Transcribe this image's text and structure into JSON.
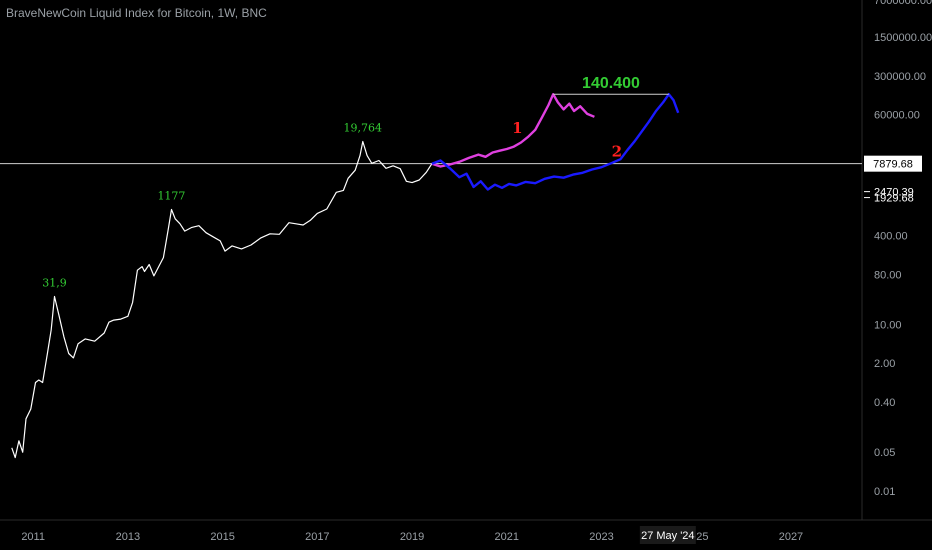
{
  "header": {
    "title": "BraveNewCoin Liquid Index for Bitcoin, 1W, BNC"
  },
  "colors": {
    "background": "#000000",
    "price_line": "#ffffff",
    "scenario_1": "#e040e0",
    "scenario_2": "#1a1aff",
    "peak_label": "#33cc33",
    "scenario_label": "#ff2020",
    "axis_text": "#9aa0a6"
  },
  "chart_data": {
    "type": "line",
    "y_scale": "log",
    "x_range": [
      2010.3,
      2028.5
    ],
    "y_range": [
      0.003,
      7000000
    ],
    "x_ticks": [
      "2011",
      "2013",
      "2015",
      "2017",
      "2019",
      "2021",
      "2023",
      "2025",
      "2027"
    ],
    "x_tick_values": [
      2011,
      2013,
      2015,
      2017,
      2019,
      2021,
      2023,
      2025,
      2027
    ],
    "y_ticks": [
      "7000000.00",
      "1500000.00",
      "300000.00",
      "60000.00",
      "400.00",
      "80.00",
      "10.00",
      "2.00",
      "0.40",
      "0.05",
      "0.01"
    ],
    "y_tick_values": [
      7000000,
      1500000,
      300000,
      60000,
      400,
      80,
      10,
      2,
      0.4,
      0.05,
      0.01
    ],
    "price_labels": [
      {
        "text": "7879.68",
        "value": 7879.68,
        "style": "boxed"
      },
      {
        "text": "2470.39",
        "value": 2470.39,
        "style": "marker"
      },
      {
        "text": "1929.68",
        "value": 1929.68,
        "style": "marker"
      }
    ],
    "date_label": {
      "text": "27 May '24",
      "x": 2024.4
    },
    "horizontal_line": {
      "value": 7879.68
    },
    "series": [
      {
        "values": [
          [
            2010.55,
            0.06
          ],
          [
            2010.62,
            0.04
          ],
          [
            2010.7,
            0.08
          ],
          [
            2010.78,
            0.05
          ],
          [
            2010.85,
            0.2
          ],
          [
            2010.95,
            0.3
          ],
          [
            2011.05,
            0.9
          ],
          [
            2011.12,
            1
          ],
          [
            2011.2,
            0.9
          ],
          [
            2011.3,
            3
          ],
          [
            2011.38,
            8
          ],
          [
            2011.45,
            31.9
          ],
          [
            2011.55,
            14
          ],
          [
            2011.65,
            6
          ],
          [
            2011.75,
            3
          ],
          [
            2011.85,
            2.5
          ],
          [
            2011.95,
            4.5
          ],
          [
            2012.1,
            5.5
          ],
          [
            2012.3,
            5
          ],
          [
            2012.5,
            7
          ],
          [
            2012.6,
            11
          ],
          [
            2012.7,
            12
          ],
          [
            2012.85,
            12.5
          ],
          [
            2013.0,
            14
          ],
          [
            2013.1,
            25
          ],
          [
            2013.2,
            95
          ],
          [
            2013.3,
            110
          ],
          [
            2013.35,
            90
          ],
          [
            2013.45,
            120
          ],
          [
            2013.55,
            75
          ],
          [
            2013.65,
            110
          ],
          [
            2013.75,
            160
          ],
          [
            2013.85,
            500
          ],
          [
            2013.92,
            1177
          ],
          [
            2014.0,
            800
          ],
          [
            2014.1,
            650
          ],
          [
            2014.2,
            480
          ],
          [
            2014.35,
            560
          ],
          [
            2014.5,
            600
          ],
          [
            2014.65,
            450
          ],
          [
            2014.8,
            380
          ],
          [
            2014.95,
            320
          ],
          [
            2015.05,
            210
          ],
          [
            2015.2,
            260
          ],
          [
            2015.4,
            230
          ],
          [
            2015.6,
            270
          ],
          [
            2015.8,
            360
          ],
          [
            2016.0,
            430
          ],
          [
            2016.2,
            420
          ],
          [
            2016.4,
            680
          ],
          [
            2016.55,
            650
          ],
          [
            2016.7,
            620
          ],
          [
            2016.85,
            750
          ],
          [
            2017.0,
            1000
          ],
          [
            2017.2,
            1200
          ],
          [
            2017.4,
            2400
          ],
          [
            2017.55,
            2600
          ],
          [
            2017.65,
            4300
          ],
          [
            2017.8,
            6000
          ],
          [
            2017.9,
            11000
          ],
          [
            2017.96,
            19764
          ],
          [
            2018.05,
            11000
          ],
          [
            2018.15,
            8000
          ],
          [
            2018.3,
            9000
          ],
          [
            2018.45,
            6500
          ],
          [
            2018.6,
            7200
          ],
          [
            2018.75,
            6400
          ],
          [
            2018.88,
            3800
          ],
          [
            2019.0,
            3600
          ],
          [
            2019.15,
            4000
          ],
          [
            2019.3,
            5500
          ],
          [
            2019.42,
            7879.68
          ]
        ]
      },
      {
        "values": [
          [
            2019.42,
            7879.68
          ],
          [
            2019.6,
            7000
          ],
          [
            2019.8,
            7600
          ],
          [
            2020.0,
            8500
          ],
          [
            2020.2,
            10000
          ],
          [
            2020.4,
            11500
          ],
          [
            2020.55,
            10500
          ],
          [
            2020.7,
            12500
          ],
          [
            2020.85,
            13500
          ],
          [
            2021.0,
            14500
          ],
          [
            2021.15,
            16000
          ],
          [
            2021.3,
            19000
          ],
          [
            2021.45,
            24000
          ],
          [
            2021.6,
            32000
          ],
          [
            2021.75,
            55000
          ],
          [
            2021.88,
            90000
          ],
          [
            2021.98,
            140400
          ],
          [
            2022.08,
            100000
          ],
          [
            2022.2,
            75000
          ],
          [
            2022.32,
            95000
          ],
          [
            2022.42,
            70000
          ],
          [
            2022.55,
            85000
          ],
          [
            2022.7,
            62000
          ],
          [
            2022.85,
            55000
          ]
        ]
      },
      {
        "values": [
          [
            2019.42,
            7879.68
          ],
          [
            2019.6,
            9000
          ],
          [
            2019.8,
            6500
          ],
          [
            2020.0,
            4500
          ],
          [
            2020.15,
            5200
          ],
          [
            2020.3,
            3000
          ],
          [
            2020.45,
            3800
          ],
          [
            2020.6,
            2700
          ],
          [
            2020.75,
            3300
          ],
          [
            2020.9,
            2900
          ],
          [
            2021.05,
            3400
          ],
          [
            2021.2,
            3200
          ],
          [
            2021.4,
            3700
          ],
          [
            2021.6,
            3500
          ],
          [
            2021.8,
            4200
          ],
          [
            2022.0,
            4600
          ],
          [
            2022.2,
            4400
          ],
          [
            2022.4,
            5000
          ],
          [
            2022.6,
            5400
          ],
          [
            2022.8,
            6200
          ],
          [
            2023.0,
            6800
          ],
          [
            2023.2,
            8000
          ],
          [
            2023.4,
            9500
          ],
          [
            2023.55,
            14000
          ],
          [
            2023.7,
            20000
          ],
          [
            2023.85,
            30000
          ],
          [
            2024.0,
            45000
          ],
          [
            2024.15,
            70000
          ],
          [
            2024.3,
            100000
          ],
          [
            2024.42,
            140400
          ],
          [
            2024.52,
            110000
          ],
          [
            2024.62,
            65000
          ]
        ]
      }
    ],
    "annotations": [
      {
        "text": "31,9",
        "x": 2011.45,
        "y": 31.9,
        "color_key": "peak_label"
      },
      {
        "text": "1177",
        "x": 2013.92,
        "y": 1177,
        "color_key": "peak_label"
      },
      {
        "text": "19,764",
        "x": 2017.96,
        "y": 19764,
        "color_key": "peak_label"
      },
      {
        "text": "140.400",
        "x": 2023.2,
        "y": 140400,
        "color_key": "peak_label"
      },
      {
        "text": "1",
        "x": 2021.35,
        "y": 24000,
        "color_key": "scenario_label"
      },
      {
        "text": "2",
        "x": 2023.45,
        "y": 9000,
        "color_key": "scenario_label"
      }
    ],
    "target_line": {
      "from_x": 2021.98,
      "to_x": 2024.42,
      "value": 140400
    }
  }
}
